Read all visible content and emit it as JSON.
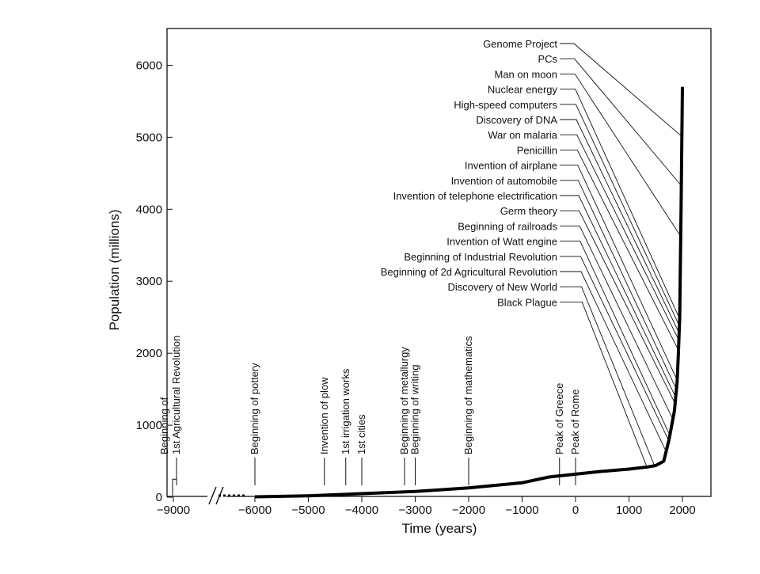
{
  "chart_data": {
    "type": "line",
    "title": "",
    "xlabel": "Time (years)",
    "ylabel": "Population (millions)",
    "xlim": [
      -9000,
      2500
    ],
    "ylim": [
      0,
      6500
    ],
    "x_ticks": [
      -9000,
      -6000,
      -5000,
      -4000,
      -3000,
      -2000,
      -1000,
      0,
      1000,
      2000
    ],
    "x_tick_labels": [
      "−9000",
      "−6000",
      "−5000",
      "−4000",
      "−3000",
      "−2000",
      "−1000",
      "0",
      "1000",
      "2000"
    ],
    "y_ticks": [
      0,
      1000,
      2000,
      3000,
      4000,
      5000,
      6000
    ],
    "x_axis_break": "between -9000 and -6000",
    "grid": false,
    "series": [
      {
        "name": "",
        "x": [
          -9000,
          -8800,
          -6000,
          -5000,
          -4000,
          -3000,
          -2000,
          -1000,
          -500,
          0,
          500,
          1000,
          1350,
          1500,
          1650,
          1750,
          1800,
          1850,
          1900,
          1925,
          1950,
          1975,
          2000
        ],
        "y": [
          5,
          5,
          5,
          20,
          50,
          80,
          130,
          200,
          280,
          320,
          360,
          390,
          420,
          440,
          500,
          800,
          1000,
          1200,
          1600,
          2000,
          2500,
          4000,
          5700
        ]
      }
    ],
    "annotations_bottom": [
      {
        "text": "Beginning of\n1st Agricultural Revolution",
        "x": -8800
      },
      {
        "text": "Beginning of pottery",
        "x": -6000
      },
      {
        "text": "Invention of plow",
        "x": -4700
      },
      {
        "text": "1st irrigation works",
        "x": -4300
      },
      {
        "text": "1st cities",
        "x": -4000
      },
      {
        "text": "Beginning of metallurgy",
        "x": -3200
      },
      {
        "text": "Beginning of writing",
        "x": -3000
      },
      {
        "text": "Beginning of mathematics",
        "x": -2000
      },
      {
        "text": "Peak of Greece",
        "x": -300
      },
      {
        "text": "Peak of Rome",
        "x": 0
      }
    ],
    "annotations_right": [
      {
        "text": "Genome Project",
        "x": 1990
      },
      {
        "text": "PCs",
        "x": 1980
      },
      {
        "text": "Man on moon",
        "x": 1969
      },
      {
        "text": "Nuclear energy",
        "x": 1950
      },
      {
        "text": "High-speed computers",
        "x": 1945
      },
      {
        "text": "Discovery of DNA",
        "x": 1940
      },
      {
        "text": "War on malaria",
        "x": 1935
      },
      {
        "text": "Penicillin",
        "x": 1928
      },
      {
        "text": "Invention of airplane",
        "x": 1903
      },
      {
        "text": "Invention of automobile",
        "x": 1890
      },
      {
        "text": "Invention of telephone electrification",
        "x": 1876
      },
      {
        "text": "Germ theory",
        "x": 1865
      },
      {
        "text": "Beginning of railroads",
        "x": 1825
      },
      {
        "text": "Invention of Watt engine",
        "x": 1769
      },
      {
        "text": "Beginning of Industrial Revolution",
        "x": 1750
      },
      {
        "text": "Beginning of 2d Agricultural Revolution",
        "x": 1700
      },
      {
        "text": "Discovery of New World",
        "x": 1492
      },
      {
        "text": "Black Plague",
        "x": 1350
      }
    ]
  }
}
